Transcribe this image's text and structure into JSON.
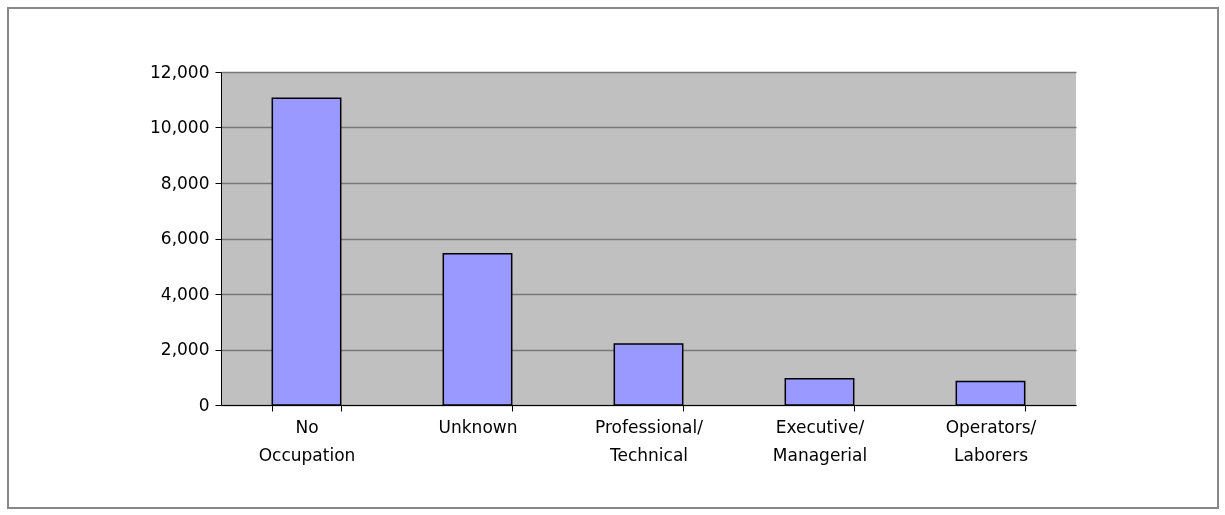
{
  "chart_data": {
    "type": "bar",
    "categories": [
      "No Occupation",
      "Unknown",
      "Professional/Technical",
      "Executive/Managerial",
      "Operators/Laborers"
    ],
    "values": [
      11050,
      5450,
      2200,
      950,
      850
    ],
    "color": "#9999ff",
    "ylim": [
      0,
      12000
    ],
    "yticks": [
      0,
      {
        "value": 2000,
        "label": "2,000"
      },
      {
        "value": 4000,
        "label": "4,000"
      },
      {
        "value": 6000,
        "label": "6,000"
      },
      {
        "value": 8000,
        "label": "8,000"
      },
      {
        "value": 10000,
        "label": "10,000"
      },
      {
        "value": 12000,
        "label": "12,000"
      }
    ],
    "grid": "y"
  }
}
